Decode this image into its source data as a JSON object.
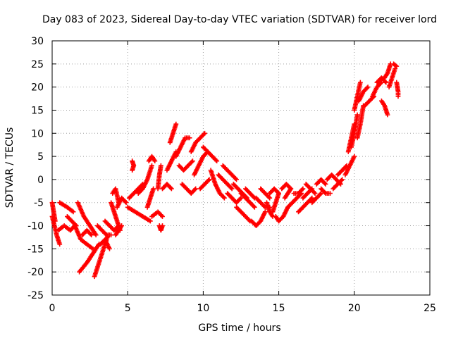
{
  "chart_data": {
    "type": "scatter",
    "title": "Day 083 of 2023, Sidereal Day-to-day VTEC variation (SDTVAR) for receiver lord",
    "xlabel": "GPS time / hours",
    "ylabel": "SDTVAR / TECUs",
    "xlim": [
      0,
      25
    ],
    "ylim": [
      -25,
      30
    ],
    "xticks": [
      0,
      5,
      10,
      15,
      20,
      25
    ],
    "yticks": [
      -25,
      -20,
      -15,
      -10,
      -5,
      0,
      5,
      10,
      15,
      20,
      25,
      30
    ],
    "grid": true,
    "marker": "+",
    "color": "#ff0000",
    "series": [
      {
        "name": "SDTVAR",
        "segments": [
          [
            [
              0.0,
              -8
            ],
            [
              0.3,
              -12
            ],
            [
              0.5,
              -14
            ]
          ],
          [
            [
              0.0,
              -5
            ],
            [
              0.1,
              -7
            ],
            [
              0.2,
              -9
            ]
          ],
          [
            [
              0.4,
              -11
            ],
            [
              0.8,
              -10
            ],
            [
              1.2,
              -11
            ],
            [
              1.5,
              -10
            ]
          ],
          [
            [
              0.5,
              -5
            ],
            [
              1.0,
              -6
            ],
            [
              1.4,
              -7
            ]
          ],
          [
            [
              1.0,
              -8
            ],
            [
              1.3,
              -9
            ],
            [
              1.6,
              -10
            ]
          ],
          [
            [
              1.5,
              -10
            ],
            [
              1.9,
              -13
            ],
            [
              2.3,
              -14
            ],
            [
              2.7,
              -15
            ]
          ],
          [
            [
              1.7,
              -5
            ],
            [
              2.1,
              -8
            ],
            [
              2.5,
              -10
            ],
            [
              2.9,
              -12
            ]
          ],
          [
            [
              1.8,
              -20
            ],
            [
              2.3,
              -18
            ],
            [
              2.7,
              -16
            ],
            [
              3.1,
              -14
            ]
          ],
          [
            [
              2.8,
              -21
            ],
            [
              3.1,
              -18
            ],
            [
              3.4,
              -15
            ],
            [
              3.7,
              -12
            ]
          ],
          [
            [
              3.0,
              -10
            ],
            [
              3.3,
              -11
            ],
            [
              3.6,
              -12
            ],
            [
              3.9,
              -12
            ]
          ],
          [
            [
              2.0,
              -12
            ],
            [
              2.3,
              -11
            ],
            [
              2.6,
              -12
            ]
          ],
          [
            [
              3.2,
              -14
            ],
            [
              3.5,
              -13
            ],
            [
              3.8,
              -15
            ]
          ],
          [
            [
              3.5,
              -9
            ],
            [
              3.8,
              -10
            ],
            [
              4.1,
              -11
            ],
            [
              4.4,
              -10
            ]
          ],
          [
            [
              3.9,
              -5
            ],
            [
              4.1,
              -7
            ],
            [
              4.3,
              -9
            ],
            [
              4.5,
              -11
            ]
          ],
          [
            [
              4.0,
              -3
            ],
            [
              4.2,
              -2
            ],
            [
              4.4,
              -5
            ]
          ],
          [
            [
              4.2,
              -12
            ],
            [
              4.4,
              -11
            ],
            [
              4.6,
              -10
            ]
          ],
          [
            [
              4.3,
              -6
            ],
            [
              4.6,
              -4
            ],
            [
              4.9,
              -5
            ]
          ],
          [
            [
              5.3,
              2
            ],
            [
              5.4,
              3
            ],
            [
              5.3,
              4
            ]
          ],
          [
            [
              5.1,
              -4
            ],
            [
              5.4,
              -3
            ],
            [
              5.7,
              -2
            ],
            [
              6.0,
              -1
            ]
          ],
          [
            [
              5.0,
              -6
            ],
            [
              5.5,
              -7
            ],
            [
              6.0,
              -8
            ],
            [
              6.5,
              -9
            ]
          ],
          [
            [
              5.7,
              -3
            ],
            [
              6.0,
              -2
            ],
            [
              6.3,
              0
            ],
            [
              6.6,
              3
            ]
          ],
          [
            [
              6.3,
              -6
            ],
            [
              6.5,
              -4
            ],
            [
              6.7,
              -2
            ]
          ],
          [
            [
              6.4,
              4
            ],
            [
              6.6,
              5
            ],
            [
              6.8,
              4
            ]
          ],
          [
            [
              6.6,
              -8
            ],
            [
              7.0,
              -7
            ],
            [
              7.3,
              -8
            ]
          ],
          [
            [
              7.0,
              -2
            ],
            [
              7.1,
              1
            ],
            [
              7.2,
              3
            ]
          ],
          [
            [
              7.1,
              -10
            ],
            [
              7.2,
              -11
            ],
            [
              7.3,
              -10
            ]
          ],
          [
            [
              7.3,
              -2
            ],
            [
              7.6,
              -1
            ],
            [
              7.9,
              -2
            ]
          ],
          [
            [
              7.6,
              2
            ],
            [
              7.9,
              4
            ],
            [
              8.2,
              6
            ]
          ],
          [
            [
              7.8,
              8
            ],
            [
              8.0,
              10
            ],
            [
              8.2,
              12
            ]
          ],
          [
            [
              8.2,
              5
            ],
            [
              8.5,
              7
            ],
            [
              8.8,
              9
            ],
            [
              9.1,
              9
            ]
          ],
          [
            [
              8.4,
              3
            ],
            [
              8.7,
              2
            ],
            [
              9.0,
              3
            ],
            [
              9.3,
              4
            ]
          ],
          [
            [
              8.6,
              -1
            ],
            [
              8.9,
              -2
            ],
            [
              9.2,
              -3
            ],
            [
              9.5,
              -2
            ]
          ],
          [
            [
              9.2,
              6
            ],
            [
              9.5,
              8
            ],
            [
              9.8,
              9
            ],
            [
              10.1,
              10
            ]
          ],
          [
            [
              9.4,
              1
            ],
            [
              9.7,
              3
            ],
            [
              10.0,
              5
            ],
            [
              10.3,
              6
            ]
          ],
          [
            [
              9.8,
              -2
            ],
            [
              10.1,
              -1
            ],
            [
              10.4,
              0
            ]
          ],
          [
            [
              10.0,
              7
            ],
            [
              10.3,
              6
            ],
            [
              10.6,
              5
            ],
            [
              10.9,
              4
            ]
          ],
          [
            [
              10.5,
              2
            ],
            [
              10.8,
              -1
            ],
            [
              11.1,
              -3
            ],
            [
              11.4,
              -4
            ]
          ],
          [
            [
              11.0,
              1
            ],
            [
              11.3,
              0
            ],
            [
              11.6,
              -1
            ],
            [
              11.9,
              -2
            ]
          ],
          [
            [
              11.3,
              3
            ],
            [
              11.6,
              2
            ],
            [
              11.9,
              1
            ],
            [
              12.2,
              0
            ]
          ],
          [
            [
              11.6,
              -3
            ],
            [
              11.9,
              -4
            ],
            [
              12.2,
              -5
            ],
            [
              12.5,
              -4
            ]
          ],
          [
            [
              12.0,
              -1
            ],
            [
              12.3,
              -2
            ],
            [
              12.6,
              -3
            ],
            [
              12.9,
              -4
            ]
          ],
          [
            [
              12.2,
              -6
            ],
            [
              12.5,
              -7
            ],
            [
              12.8,
              -8
            ],
            [
              13.1,
              -9
            ]
          ],
          [
            [
              12.5,
              -3
            ],
            [
              12.8,
              -4
            ],
            [
              13.1,
              -5
            ],
            [
              13.4,
              -6
            ]
          ],
          [
            [
              12.8,
              -2
            ],
            [
              13.1,
              -3
            ],
            [
              13.4,
              -4
            ]
          ],
          [
            [
              13.2,
              -9
            ],
            [
              13.5,
              -10
            ],
            [
              13.8,
              -9
            ],
            [
              14.1,
              -7
            ]
          ],
          [
            [
              13.5,
              -4
            ],
            [
              13.8,
              -5
            ],
            [
              14.1,
              -6
            ],
            [
              14.4,
              -6
            ]
          ],
          [
            [
              13.8,
              -2
            ],
            [
              14.1,
              -3
            ],
            [
              14.4,
              -4
            ]
          ],
          [
            [
              14.2,
              -5
            ],
            [
              14.4,
              -7
            ],
            [
              14.6,
              -8
            ]
          ],
          [
            [
              14.4,
              -3
            ],
            [
              14.7,
              -2
            ],
            [
              15.0,
              -3
            ]
          ],
          [
            [
              14.6,
              -7
            ],
            [
              14.8,
              -5
            ],
            [
              15.0,
              -3
            ]
          ],
          [
            [
              14.8,
              -8
            ],
            [
              15.0,
              -9
            ],
            [
              15.3,
              -8
            ],
            [
              15.6,
              -6
            ]
          ],
          [
            [
              15.2,
              -2
            ],
            [
              15.5,
              -1
            ],
            [
              15.8,
              -2
            ]
          ],
          [
            [
              15.4,
              -4
            ],
            [
              15.6,
              -3
            ],
            [
              15.8,
              -2
            ]
          ],
          [
            [
              15.6,
              -6
            ],
            [
              15.9,
              -5
            ],
            [
              16.2,
              -4
            ],
            [
              16.5,
              -3
            ]
          ],
          [
            [
              16.0,
              -3
            ],
            [
              16.3,
              -3
            ],
            [
              16.6,
              -2
            ]
          ],
          [
            [
              16.3,
              -7
            ],
            [
              16.6,
              -6
            ],
            [
              16.9,
              -5
            ],
            [
              17.2,
              -4
            ]
          ],
          [
            [
              16.6,
              -4
            ],
            [
              16.9,
              -3
            ],
            [
              17.2,
              -2
            ]
          ],
          [
            [
              16.8,
              -1
            ],
            [
              17.1,
              -2
            ],
            [
              17.4,
              -3
            ]
          ],
          [
            [
              17.2,
              -5
            ],
            [
              17.5,
              -4
            ],
            [
              17.8,
              -3
            ]
          ],
          [
            [
              17.5,
              -1
            ],
            [
              17.8,
              0
            ],
            [
              18.1,
              -1
            ]
          ],
          [
            [
              17.8,
              -2
            ],
            [
              18.1,
              -3
            ],
            [
              18.4,
              -3
            ]
          ],
          [
            [
              18.2,
              0
            ],
            [
              18.5,
              1
            ],
            [
              18.8,
              0
            ],
            [
              19.1,
              -1
            ]
          ],
          [
            [
              18.6,
              -2
            ],
            [
              18.9,
              -1
            ],
            [
              19.2,
              0
            ]
          ],
          [
            [
              18.9,
              1
            ],
            [
              19.2,
              2
            ],
            [
              19.5,
              3
            ]
          ],
          [
            [
              19.4,
              1
            ],
            [
              19.7,
              3
            ],
            [
              20.0,
              5
            ]
          ],
          [
            [
              19.6,
              6
            ],
            [
              19.8,
              9
            ],
            [
              20.0,
              12
            ]
          ],
          [
            [
              19.8,
              7
            ],
            [
              20.0,
              10
            ],
            [
              20.2,
              14
            ]
          ],
          [
            [
              20.0,
              15
            ],
            [
              20.2,
              18
            ],
            [
              20.4,
              21
            ]
          ],
          [
            [
              20.2,
              9
            ],
            [
              20.4,
              12
            ],
            [
              20.6,
              16
            ]
          ],
          [
            [
              20.3,
              17
            ],
            [
              20.6,
              19
            ],
            [
              20.9,
              20
            ]
          ],
          [
            [
              20.7,
              16
            ],
            [
              21.0,
              17
            ],
            [
              21.3,
              18
            ]
          ],
          [
            [
              21.2,
              18
            ],
            [
              21.5,
              20
            ],
            [
              21.8,
              21
            ]
          ],
          [
            [
              21.5,
              21
            ],
            [
              21.8,
              22
            ],
            [
              22.1,
              21
            ]
          ],
          [
            [
              21.8,
              17
            ],
            [
              22.0,
              16
            ],
            [
              22.2,
              14
            ]
          ],
          [
            [
              22.0,
              22
            ],
            [
              22.2,
              23
            ],
            [
              22.4,
              25
            ]
          ],
          [
            [
              22.3,
              20
            ],
            [
              22.5,
              22
            ],
            [
              22.7,
              24
            ]
          ],
          [
            [
              22.6,
              25
            ],
            [
              22.8,
              24.5
            ]
          ],
          [
            [
              22.8,
              21
            ],
            [
              22.9,
              19
            ],
            [
              22.9,
              18
            ]
          ]
        ]
      }
    ]
  }
}
